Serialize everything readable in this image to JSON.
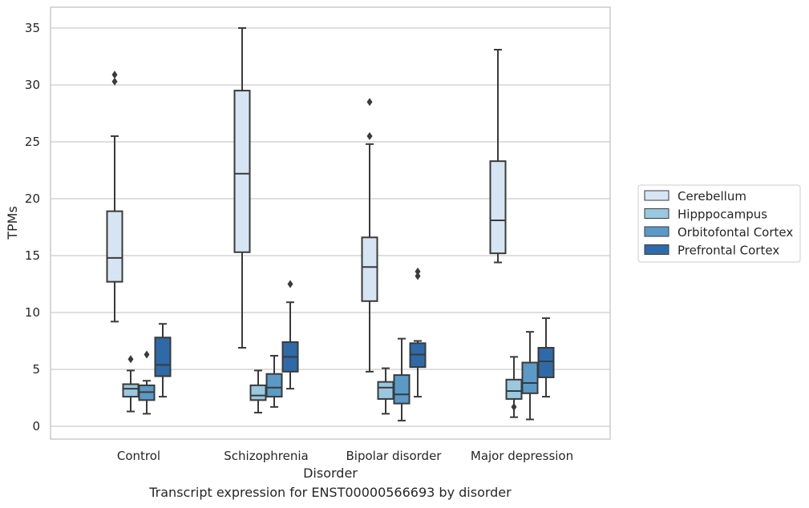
{
  "caption": "Transcript expression for ENST00000566693 by disorder",
  "chart_data": {
    "type": "box",
    "xlabel": "Disorder",
    "ylabel": "TPMs",
    "ylim": [
      -1.1,
      36.7
    ],
    "yticks": [
      0,
      5,
      10,
      15,
      20,
      25,
      30,
      35
    ],
    "grid": "horizontal",
    "legend_position": "right",
    "categories": [
      "Control",
      "Schizophrenia",
      "Bipolar disorder",
      "Major depression"
    ],
    "series": [
      {
        "name": "Cerebellum",
        "color": "#d6e5f4",
        "boxes": [
          {
            "whisker_low": 9.2,
            "q1": 12.7,
            "median": 14.8,
            "q3": 18.9,
            "whisker_high": 25.5,
            "outliers": [
              30.3,
              30.9
            ]
          },
          {
            "whisker_low": 6.9,
            "q1": 15.3,
            "median": 22.2,
            "q3": 29.5,
            "whisker_high": 35.0,
            "outliers": []
          },
          {
            "whisker_low": 4.8,
            "q1": 11.0,
            "median": 14.0,
            "q3": 16.6,
            "whisker_high": 24.8,
            "outliers": [
              25.5,
              28.5
            ]
          },
          {
            "whisker_low": 14.4,
            "q1": 15.2,
            "median": 18.1,
            "q3": 23.3,
            "whisker_high": 33.1,
            "outliers": []
          }
        ]
      },
      {
        "name": "Hipppocampus",
        "color": "#9ac8df",
        "boxes": [
          {
            "whisker_low": 1.3,
            "q1": 2.6,
            "median": 3.3,
            "q3": 3.7,
            "whisker_high": 4.9,
            "outliers": [
              5.9
            ]
          },
          {
            "whisker_low": 1.2,
            "q1": 2.3,
            "median": 2.7,
            "q3": 3.6,
            "whisker_high": 4.9,
            "outliers": []
          },
          {
            "whisker_low": 1.1,
            "q1": 2.4,
            "median": 3.4,
            "q3": 3.9,
            "whisker_high": 5.1,
            "outliers": []
          },
          {
            "whisker_low": 0.8,
            "q1": 2.4,
            "median": 3.1,
            "q3": 4.1,
            "whisker_high": 6.1,
            "outliers": [
              1.7
            ]
          }
        ]
      },
      {
        "name": "Orbitofontal Cortex",
        "color": "#5b9ac6",
        "boxes": [
          {
            "whisker_low": 1.1,
            "q1": 2.3,
            "median": 3.0,
            "q3": 3.6,
            "whisker_high": 4.0,
            "outliers": [
              6.3
            ]
          },
          {
            "whisker_low": 1.7,
            "q1": 2.6,
            "median": 3.4,
            "q3": 4.6,
            "whisker_high": 6.2,
            "outliers": []
          },
          {
            "whisker_low": 0.5,
            "q1": 2.0,
            "median": 2.8,
            "q3": 4.5,
            "whisker_high": 7.7,
            "outliers": []
          },
          {
            "whisker_low": 0.6,
            "q1": 2.9,
            "median": 3.8,
            "q3": 5.6,
            "whisker_high": 8.3,
            "outliers": []
          }
        ]
      },
      {
        "name": "Prefrontal Cortex",
        "color": "#2f6aa8",
        "boxes": [
          {
            "whisker_low": 2.6,
            "q1": 4.4,
            "median": 5.4,
            "q3": 7.8,
            "whisker_high": 9.0,
            "outliers": []
          },
          {
            "whisker_low": 3.3,
            "q1": 4.8,
            "median": 6.1,
            "q3": 7.4,
            "whisker_high": 10.9,
            "outliers": [
              12.5
            ]
          },
          {
            "whisker_low": 2.6,
            "q1": 5.2,
            "median": 6.3,
            "q3": 7.3,
            "whisker_high": 7.5,
            "outliers": [
              13.2,
              13.6
            ]
          },
          {
            "whisker_low": 2.6,
            "q1": 4.3,
            "median": 5.7,
            "q3": 6.9,
            "whisker_high": 9.5,
            "outliers": []
          }
        ]
      }
    ]
  }
}
